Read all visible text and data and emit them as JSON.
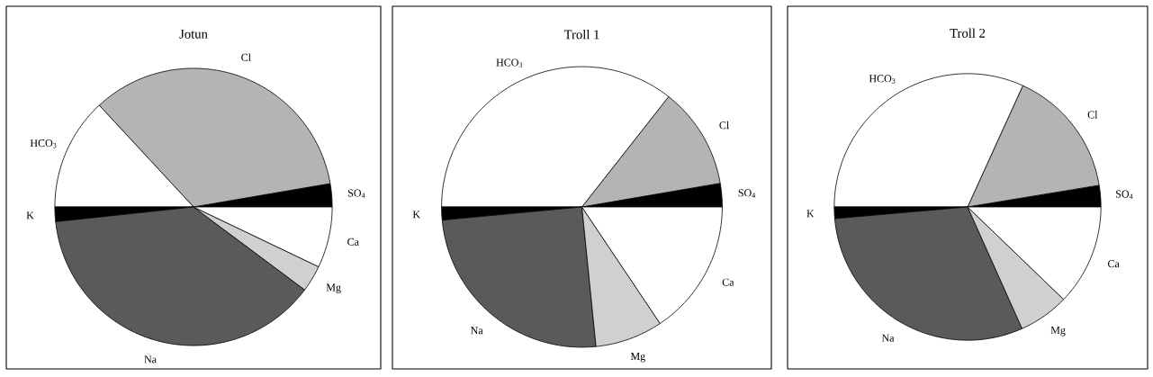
{
  "chart_data": [
    {
      "type": "pie",
      "title": "Jotun",
      "categories": [
        "SO$_{4}$",
        "Cl",
        "HCO$_{3}$",
        "K",
        "Na",
        "Mg",
        "Ca"
      ],
      "values": [
        2.7,
        34.2,
        13.1,
        1.7,
        38.1,
        3.1,
        7.1
      ],
      "colors": [
        "#000000",
        "#b4b4b4",
        "#ffffff",
        "#000000",
        "#5a5a5a",
        "#d0d0d0",
        "#ffffff"
      ]
    },
    {
      "type": "pie",
      "title": "Troll 1",
      "categories": [
        "SO$_{4}$",
        "Cl",
        "HCO$_{3}$",
        "K",
        "Na",
        "Mg",
        "Ca"
      ],
      "values": [
        2.7,
        11.7,
        35.6,
        1.5,
        25.1,
        7.8,
        15.6
      ],
      "colors": [
        "#000000",
        "#b4b4b4",
        "#ffffff",
        "#000000",
        "#5a5a5a",
        "#d0d0d0",
        "#ffffff"
      ]
    },
    {
      "type": "pie",
      "title": "Troll 2",
      "categories": [
        "SO$_{4}$",
        "Cl",
        "HCO$_{3}$",
        "K",
        "Na",
        "Mg",
        "Ca"
      ],
      "values": [
        2.6,
        15.6,
        31.8,
        1.4,
        30.3,
        6.1,
        12.2
      ],
      "colors": [
        "#000000",
        "#b4b4b4",
        "#ffffff",
        "#000000",
        "#5a5a5a",
        "#d0d0d0",
        "#ffffff"
      ]
    }
  ]
}
